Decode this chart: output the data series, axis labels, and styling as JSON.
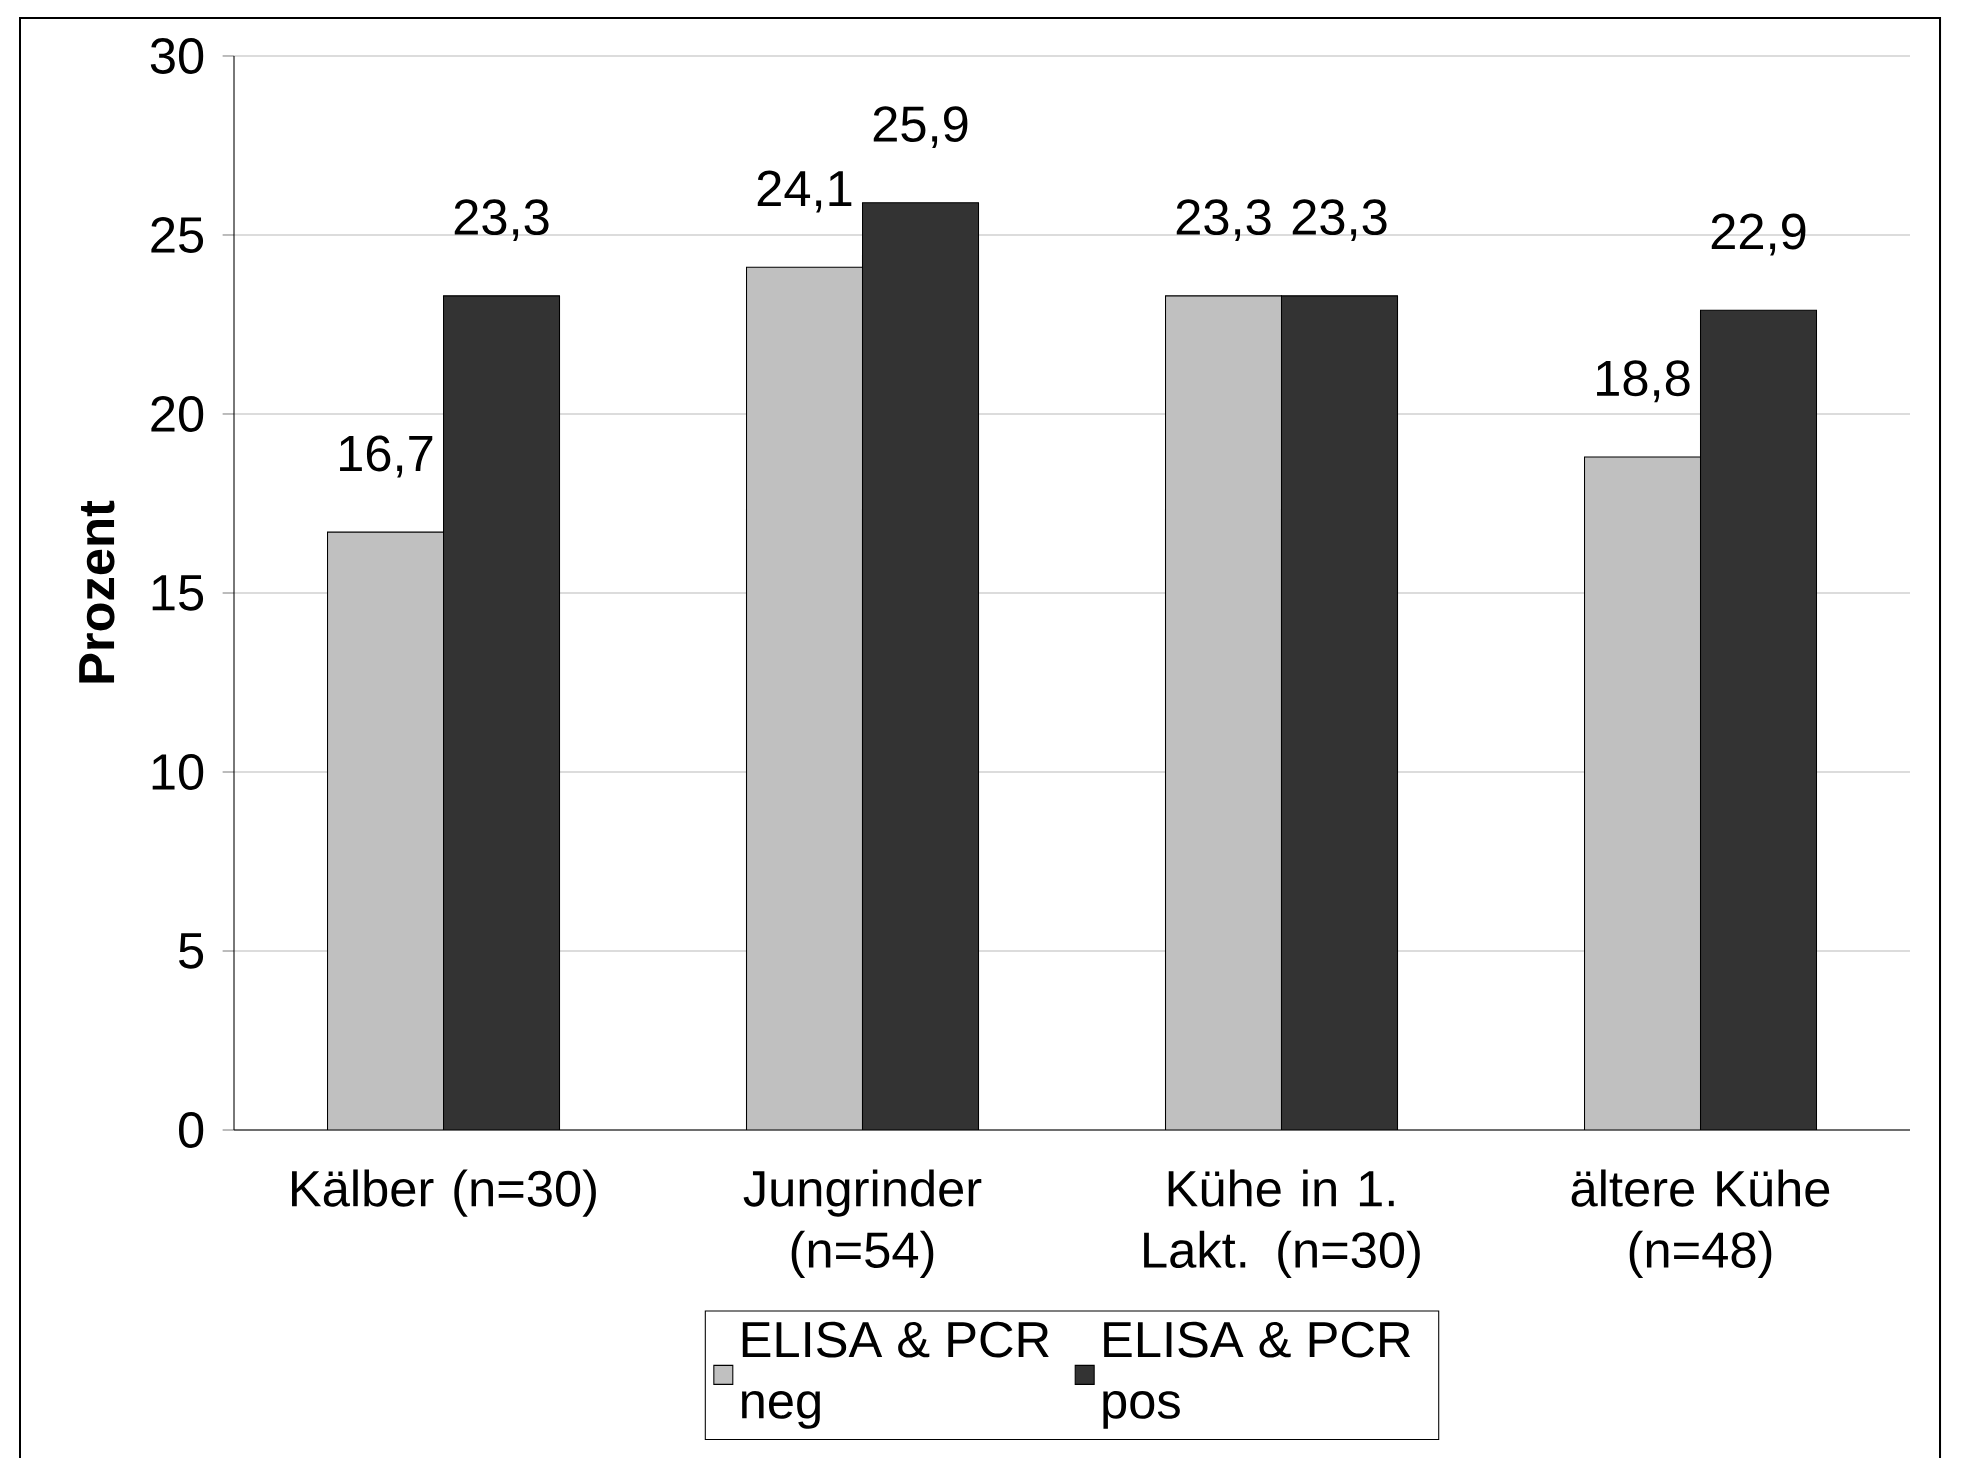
{
  "chart_data": {
    "type": "bar",
    "ylabel": "Prozent",
    "categories": [
      "Kälber (n=30)",
      "Jungrinder (n=54)",
      "Kühe in 1. Lakt. (n=30)",
      "ältere Kühe (n=48)"
    ],
    "series": [
      {
        "name": "ELISA & PCR neg",
        "color": "#c0c0c0",
        "values": [
          16.7,
          24.1,
          23.3,
          18.8
        ],
        "value_labels": [
          "16,7",
          "24,1",
          "23,3",
          "18,8"
        ]
      },
      {
        "name": "ELISA & PCR pos",
        "color": "#333333",
        "values": [
          23.3,
          25.9,
          23.3,
          22.9
        ],
        "value_labels": [
          "23,3",
          "25,9",
          "23,3",
          "22,9"
        ]
      }
    ],
    "ylim": [
      0,
      30
    ],
    "yticks": [
      0,
      5,
      10,
      15,
      20,
      25,
      30
    ],
    "grid": "y",
    "legend": "bottom"
  }
}
